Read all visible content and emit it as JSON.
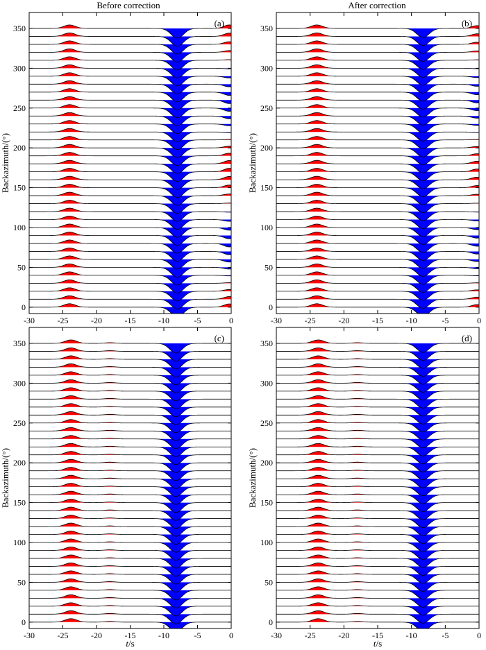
{
  "column_titles": [
    "Before correction",
    "After correction"
  ],
  "xlabel_italic": "t",
  "xlabel_rest": "/s",
  "colors": {
    "positive": "#ff0000",
    "negative": "#0000ff",
    "trace": "#000000"
  },
  "chart_data": [
    {
      "type": "wiggle-trace",
      "panel_label": "(a)",
      "column": "Before correction",
      "ylabel": "Backazimuth/(°)",
      "xlabel": "",
      "xlim": [
        -30,
        0
      ],
      "ylim": [
        -8,
        370
      ],
      "xticks": [
        -30,
        -25,
        -20,
        -15,
        -10,
        -5,
        0
      ],
      "yticks": [
        0,
        50,
        100,
        150,
        200,
        250,
        300,
        350
      ],
      "backazimuths": [
        10,
        20,
        30,
        40,
        50,
        60,
        70,
        80,
        90,
        100,
        110,
        120,
        130,
        140,
        150,
        160,
        170,
        180,
        190,
        200,
        210,
        220,
        230,
        240,
        250,
        260,
        270,
        280,
        290,
        300,
        310,
        320,
        330,
        340,
        350,
        360
      ],
      "main_pulse": {
        "time": -8,
        "amplitude": -14,
        "width": 1.3
      },
      "early_pulse": {
        "time": -24,
        "amplitude": 5,
        "width": 1.2
      },
      "late_arrival": {
        "time": -0.3,
        "amplitude_max": 5,
        "width": 1.1,
        "modulation": "cos(2·baz)"
      },
      "minor_arrival": null
    },
    {
      "type": "wiggle-trace",
      "panel_label": "(b)",
      "column": "After correction",
      "ylabel": "Backazimuth/(°)",
      "xlabel": "",
      "xlim": [
        -30,
        0
      ],
      "ylim": [
        -8,
        370
      ],
      "xticks": [
        -30,
        -25,
        -20,
        -15,
        -10,
        -5,
        0
      ],
      "yticks": [
        0,
        50,
        100,
        150,
        200,
        250,
        300,
        350
      ],
      "backazimuths": [
        10,
        20,
        30,
        40,
        50,
        60,
        70,
        80,
        90,
        100,
        110,
        120,
        130,
        140,
        150,
        160,
        170,
        180,
        190,
        200,
        210,
        220,
        230,
        240,
        250,
        260,
        270,
        280,
        290,
        300,
        310,
        320,
        330,
        340,
        350,
        360
      ],
      "main_pulse": {
        "time": -8.3,
        "amplitude": -13,
        "width": 1.3
      },
      "early_pulse": {
        "time": -24,
        "amplitude": 5,
        "width": 1.2
      },
      "late_arrival": {
        "time": -0.3,
        "amplitude_max": 4,
        "width": 1.1,
        "modulation": "cos(2·baz)"
      },
      "minor_arrival": null
    },
    {
      "type": "wiggle-trace",
      "panel_label": "(c)",
      "column": "Before correction",
      "ylabel": "Backazimuth/(°)",
      "xlabel": "t/s",
      "xlim": [
        -30,
        0
      ],
      "ylim": [
        -8,
        370
      ],
      "xticks": [
        -30,
        -25,
        -20,
        -15,
        -10,
        -5,
        0
      ],
      "yticks": [
        0,
        50,
        100,
        150,
        200,
        250,
        300,
        350
      ],
      "backazimuths": [
        10,
        20,
        30,
        40,
        50,
        60,
        70,
        80,
        90,
        100,
        110,
        120,
        130,
        140,
        150,
        160,
        170,
        180,
        190,
        200,
        210,
        220,
        230,
        240,
        250,
        260,
        270,
        280,
        290,
        300,
        310,
        320,
        330,
        340,
        350,
        360
      ],
      "main_pulse": {
        "time": -8.2,
        "amplitude": -14,
        "width": 1.3
      },
      "early_pulse": {
        "time": -23.8,
        "amplitude": 5,
        "width": 1.2
      },
      "late_arrival": null,
      "minor_arrival": {
        "time": -18,
        "amplitude": 1,
        "width": 1.0
      }
    },
    {
      "type": "wiggle-trace",
      "panel_label": "(d)",
      "column": "After correction",
      "ylabel": "Backazimuth/(°)",
      "xlabel": "t/s",
      "xlim": [
        -30,
        0
      ],
      "ylim": [
        -8,
        370
      ],
      "xticks": [
        -30,
        -25,
        -20,
        -15,
        -10,
        -5,
        0
      ],
      "yticks": [
        0,
        50,
        100,
        150,
        200,
        250,
        300,
        350
      ],
      "backazimuths": [
        10,
        20,
        30,
        40,
        50,
        60,
        70,
        80,
        90,
        100,
        110,
        120,
        130,
        140,
        150,
        160,
        170,
        180,
        190,
        200,
        210,
        220,
        230,
        240,
        250,
        260,
        270,
        280,
        290,
        300,
        310,
        320,
        330,
        340,
        350,
        360
      ],
      "main_pulse": {
        "time": -8.3,
        "amplitude": -13,
        "width": 1.3
      },
      "early_pulse": {
        "time": -23.8,
        "amplitude": 5,
        "width": 1.2
      },
      "late_arrival": null,
      "minor_arrival": {
        "time": -18,
        "amplitude": 1,
        "width": 1.0
      }
    }
  ]
}
